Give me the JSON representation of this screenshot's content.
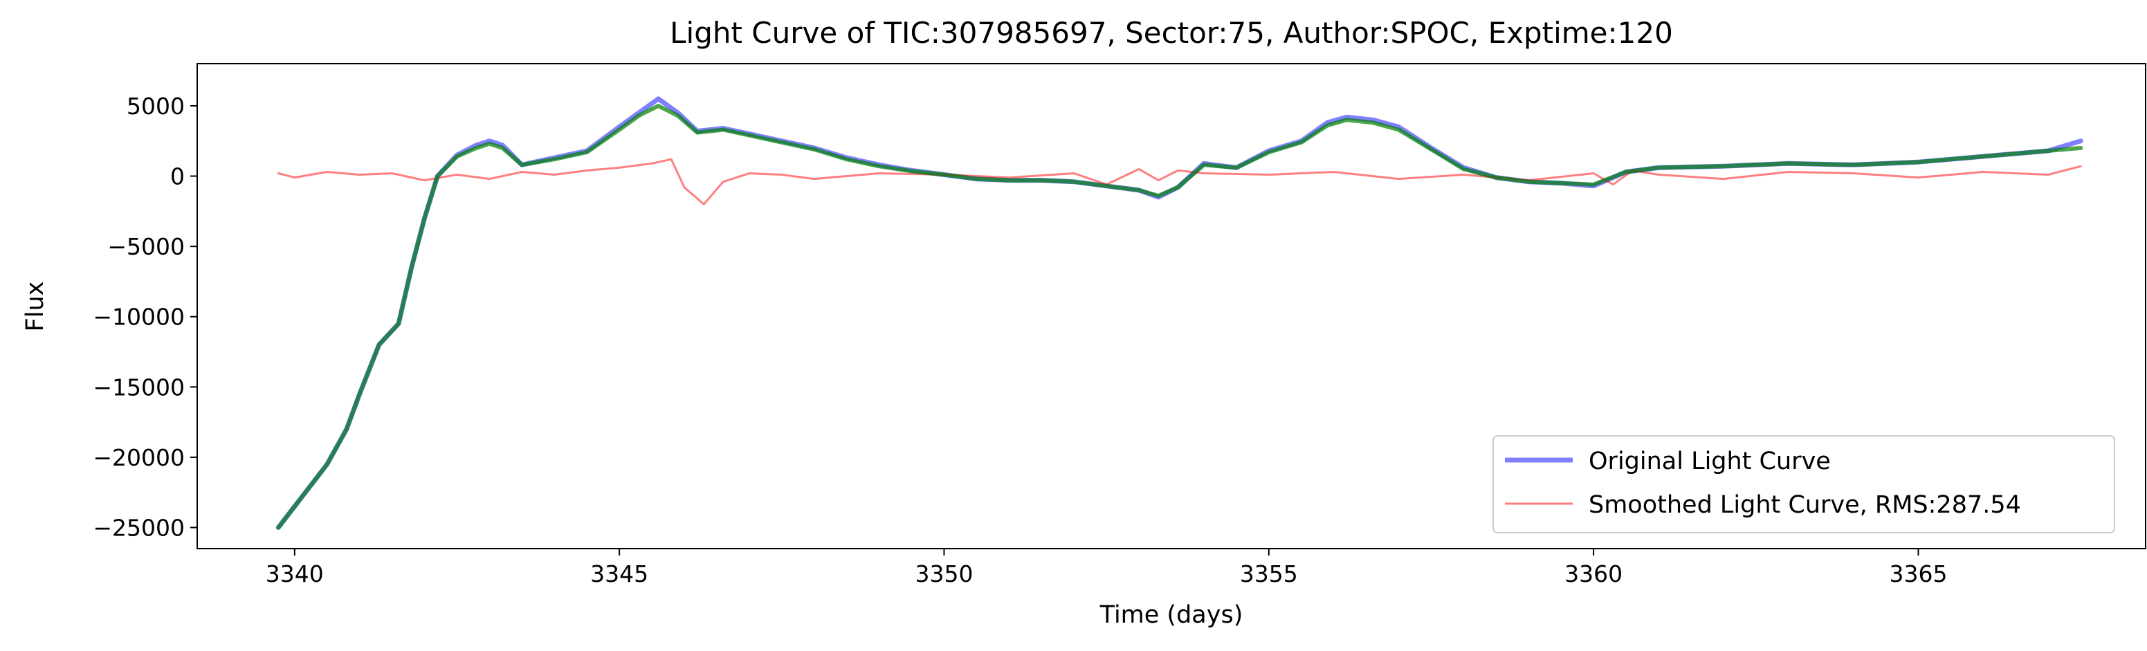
{
  "chart_data": {
    "type": "line",
    "title": "Light Curve of TIC:307985697, Sector:75, Author:SPOC, Exptime:120",
    "xlabel": "Time (days)",
    "ylabel": "Flux",
    "xlim": [
      3338.5,
      3368.5
    ],
    "ylim": [
      -26500,
      8000
    ],
    "xticks": [
      3340,
      3345,
      3350,
      3355,
      3360,
      3365
    ],
    "yticks": [
      5000,
      0,
      -5000,
      -10000,
      -15000,
      -20000,
      -25000
    ],
    "ytick_labels": [
      "5000",
      "0",
      "−5000",
      "−10000",
      "−15000",
      "−20000",
      "−25000"
    ],
    "grid": false,
    "legend_position": "lower-right",
    "series": [
      {
        "name": "Original Light Curve",
        "color": "#0000ff",
        "x": [
          3339.75,
          3340.0,
          3340.5,
          3340.8,
          3341.0,
          3341.3,
          3341.6,
          3341.8,
          3342.0,
          3342.2,
          3342.5,
          3342.8,
          3343.0,
          3343.2,
          3343.5,
          3344.0,
          3344.5,
          3345.0,
          3345.3,
          3345.6,
          3345.9,
          3346.2,
          3346.6,
          3347.0,
          3347.5,
          3348.0,
          3348.5,
          3349.0,
          3349.5,
          3350.0,
          3350.5,
          3351.0,
          3351.5,
          3352.0,
          3352.5,
          3353.0,
          3353.3,
          3353.6,
          3354.0,
          3354.5,
          3355.0,
          3355.5,
          3355.9,
          3356.2,
          3356.6,
          3357.0,
          3357.5,
          3358.0,
          3358.5,
          3359.0,
          3359.5,
          3360.0,
          3360.5,
          3361.0,
          3362.0,
          3363.0,
          3364.0,
          3365.0,
          3366.0,
          3367.0,
          3367.5
        ],
        "y": [
          -25000,
          -23500,
          -20500,
          -18000,
          -15500,
          -12000,
          -10500,
          -6500,
          -3000,
          0,
          1500,
          2200,
          2500,
          2200,
          800,
          1300,
          1800,
          3500,
          4500,
          5500,
          4500,
          3200,
          3400,
          3000,
          2500,
          2000,
          1300,
          800,
          400,
          100,
          -200,
          -300,
          -300,
          -400,
          -700,
          -1000,
          -1500,
          -800,
          900,
          600,
          1800,
          2500,
          3800,
          4200,
          4000,
          3500,
          2000,
          600,
          -100,
          -400,
          -500,
          -700,
          300,
          600,
          700,
          900,
          800,
          1000,
          1400,
          1800,
          2500
        ]
      },
      {
        "name": "Smoothed Light Curve, RMS:287.54",
        "color": "#ff0000",
        "x": [
          3339.75,
          3340.0,
          3340.5,
          3341.0,
          3341.5,
          3342.0,
          3342.5,
          3343.0,
          3343.5,
          3344.0,
          3344.5,
          3345.0,
          3345.5,
          3345.8,
          3346.0,
          3346.3,
          3346.6,
          3347.0,
          3347.5,
          3348.0,
          3349.0,
          3350.0,
          3351.0,
          3352.0,
          3352.5,
          3353.0,
          3353.3,
          3353.6,
          3354.0,
          3355.0,
          3356.0,
          3357.0,
          3358.0,
          3359.0,
          3360.0,
          3360.3,
          3360.6,
          3361.0,
          3362.0,
          3363.0,
          3364.0,
          3365.0,
          3366.0,
          3367.0,
          3367.5
        ],
        "y": [
          200,
          -100,
          300,
          100,
          200,
          -300,
          100,
          -200,
          300,
          100,
          400,
          600,
          900,
          1200,
          -800,
          -2000,
          -400,
          200,
          100,
          -200,
          200,
          100,
          -100,
          200,
          -600,
          500,
          -300,
          400,
          200,
          100,
          300,
          -200,
          100,
          -300,
          200,
          -600,
          400,
          100,
          -200,
          300,
          200,
          -100,
          300,
          100,
          700
        ]
      },
      {
        "name": "",
        "color": "#008000",
        "x": [
          3339.75,
          3340.0,
          3340.5,
          3340.8,
          3341.0,
          3341.3,
          3341.6,
          3341.8,
          3342.0,
          3342.2,
          3342.5,
          3342.8,
          3343.0,
          3343.2,
          3343.5,
          3344.0,
          3344.5,
          3345.0,
          3345.3,
          3345.6,
          3345.9,
          3346.2,
          3346.6,
          3347.0,
          3347.5,
          3348.0,
          3348.5,
          3349.0,
          3349.5,
          3350.0,
          3350.5,
          3351.0,
          3351.5,
          3352.0,
          3352.5,
          3353.0,
          3353.3,
          3353.6,
          3354.0,
          3354.5,
          3355.0,
          3355.5,
          3355.9,
          3356.2,
          3356.6,
          3357.0,
          3357.5,
          3358.0,
          3358.5,
          3359.0,
          3359.5,
          3360.0,
          3360.5,
          3361.0,
          3362.0,
          3363.0,
          3364.0,
          3365.0,
          3366.0,
          3367.0,
          3367.5
        ],
        "y": [
          -25000,
          -23500,
          -20500,
          -18000,
          -15500,
          -12000,
          -10500,
          -6500,
          -3000,
          0,
          1400,
          2000,
          2300,
          2000,
          800,
          1200,
          1700,
          3300,
          4300,
          5000,
          4300,
          3100,
          3300,
          2900,
          2400,
          1900,
          1200,
          700,
          350,
          100,
          -200,
          -300,
          -300,
          -400,
          -700,
          -1000,
          -1400,
          -800,
          800,
          600,
          1700,
          2400,
          3600,
          4000,
          3800,
          3300,
          1900,
          500,
          -100,
          -400,
          -500,
          -600,
          300,
          600,
          700,
          900,
          800,
          1000,
          1400,
          1800,
          2000
        ]
      }
    ]
  }
}
